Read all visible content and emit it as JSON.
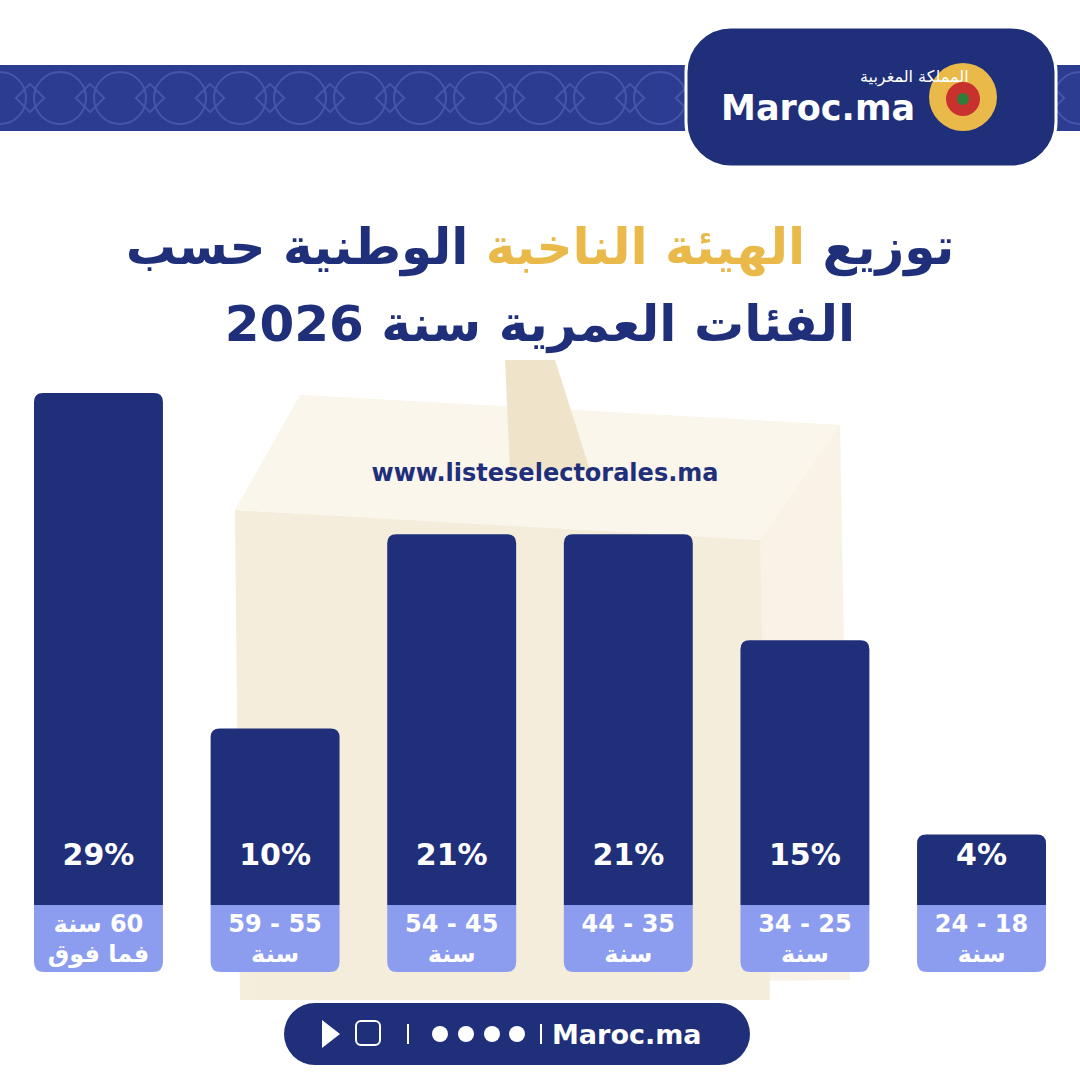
{
  "header": {
    "brand": "Maroc.ma",
    "country": "المملكة المغربية"
  },
  "footer": {
    "brand": "Maroc.ma"
  },
  "chart_data": {
    "type": "bar",
    "title": "توزيع الهيئة الناخبة الوطنية حسب\nالفئات العمرية سنة 2026",
    "annotations": [
      "www.listeselectorales.ma"
    ],
    "categories": [
      "18 - 24\nسنة",
      "25 - 34\nسنة",
      "35 - 44\nسنة",
      "45 - 54\nسنة",
      "55 - 59\nسنة",
      "60 سنة\nفما فوق"
    ],
    "values": [
      4,
      15,
      21,
      21,
      10,
      29
    ],
    "value_labels": [
      "4%",
      "15%",
      "21%",
      "21%",
      "10%",
      "29%"
    ],
    "color": "#1f2f7a",
    "ylim": [
      0,
      29
    ],
    "data_labels": true,
    "tick_labels": false,
    "grid": false
  }
}
